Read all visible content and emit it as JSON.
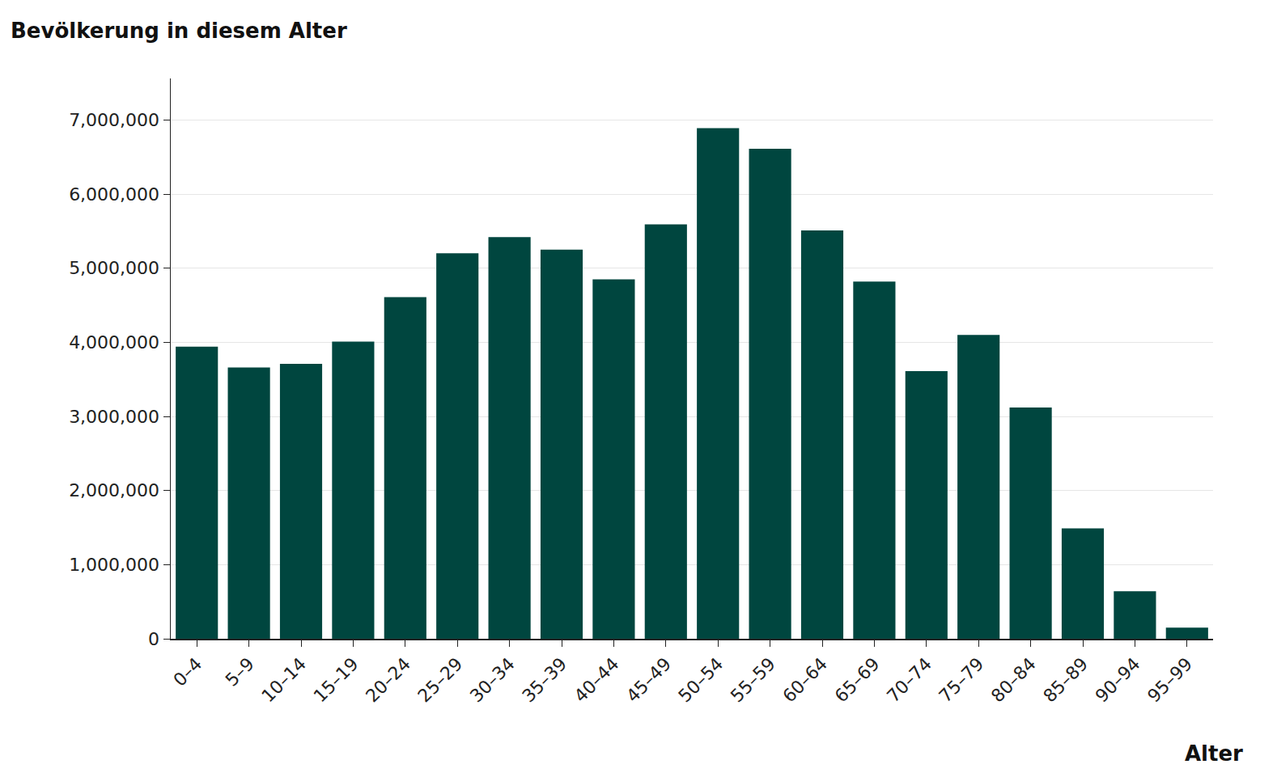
{
  "chart_data": {
    "type": "bar",
    "ylabel": "Bevölkerung in diesem Alter",
    "xlabel": "Alter",
    "categories": [
      "0–4",
      "5–9",
      "10–14",
      "15–19",
      "20–24",
      "25–29",
      "30–34",
      "35–39",
      "40–44",
      "45–49",
      "50–54",
      "55–59",
      "60–64",
      "65–69",
      "70–74",
      "75–79",
      "80–84",
      "85–89",
      "90–94",
      "95–99"
    ],
    "values": [
      3940000,
      3660000,
      3710000,
      4010000,
      4610000,
      5200000,
      5420000,
      5250000,
      4850000,
      5590000,
      6890000,
      6610000,
      5510000,
      4820000,
      3610000,
      4100000,
      3120000,
      1490000,
      640000,
      150000
    ],
    "color": "#00463f",
    "ylim": [
      0,
      7560000
    ],
    "yticks": [
      0,
      {
        "value": 1000000,
        "label": "1,000,000"
      },
      {
        "value": 2000000,
        "label": "2,000,000"
      },
      {
        "value": 3000000,
        "label": "3,000,000"
      },
      {
        "value": 4000000,
        "label": "4,000,000"
      },
      {
        "value": 5000000,
        "label": "5,000,000"
      },
      {
        "value": 6000000,
        "label": "6,000,000"
      },
      {
        "value": 7000000,
        "label": "7,000,000"
      }
    ],
    "grid": true
  }
}
